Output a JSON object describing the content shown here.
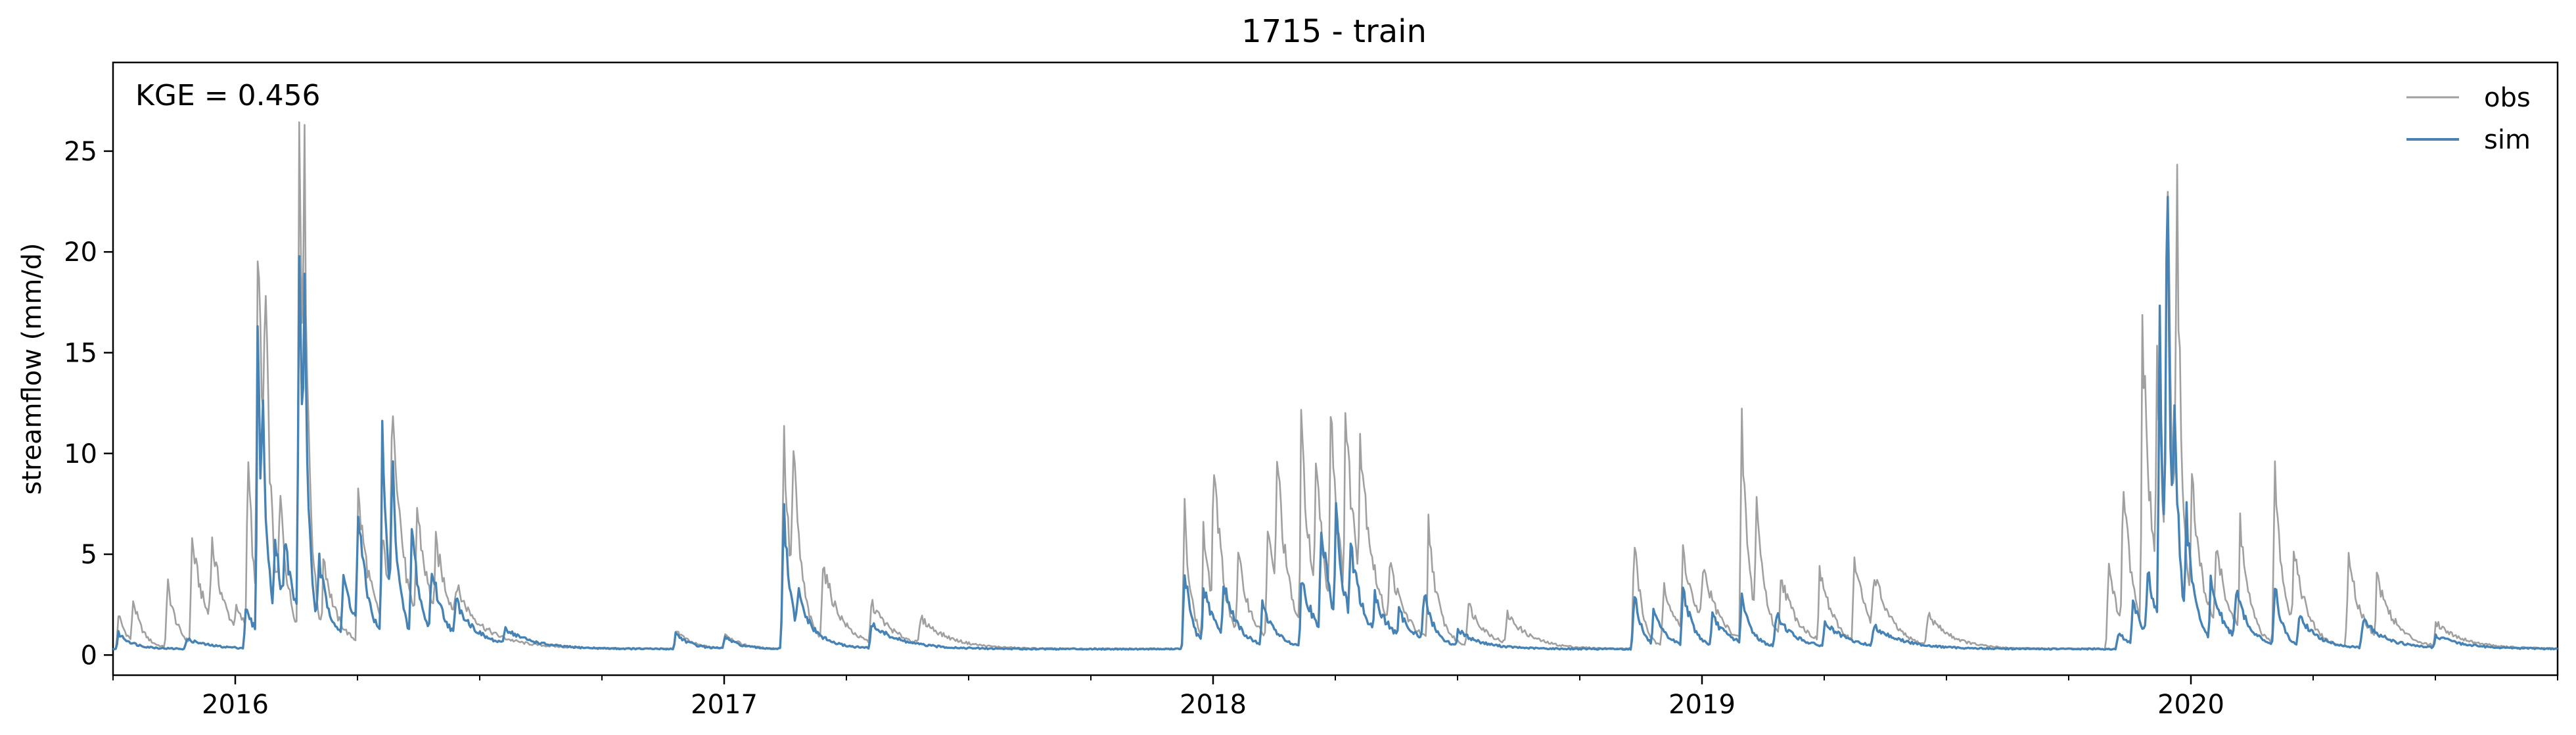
{
  "chart_data": {
    "type": "line",
    "title": "1715 - train",
    "xlabel": "",
    "ylabel": "streamflow (mm/d)",
    "annotation": "KGE = 0.456",
    "x_unit": "fractional year",
    "xlim": [
      2015.75,
      2020.75
    ],
    "ylim": [
      -1.0,
      29.4
    ],
    "yticks": [
      0,
      5,
      10,
      15,
      20,
      25
    ],
    "ytick_labels": [
      "0",
      "5",
      "10",
      "15",
      "20",
      "25"
    ],
    "xticks": [
      2016,
      2017,
      2018,
      2019,
      2020
    ],
    "xtick_labels": [
      "2016",
      "2017",
      "2018",
      "2019",
      "2020"
    ],
    "legend_position": "top-right",
    "series": [
      {
        "name": "obs",
        "color": "#a0a0a0",
        "base": 0.3,
        "events": [
          [
            2015.76,
            1.8,
            0.02
          ],
          [
            2015.79,
            2.2,
            0.02
          ],
          [
            2015.86,
            3.5,
            0.02
          ],
          [
            2015.91,
            5.4,
            0.03
          ],
          [
            2015.95,
            4.3,
            0.03
          ],
          [
            2016.0,
            1.0,
            0.06
          ],
          [
            2016.025,
            11.0,
            0.01
          ],
          [
            2016.045,
            20.4,
            0.015
          ],
          [
            2016.06,
            12.0,
            0.012
          ],
          [
            2016.09,
            6.2,
            0.02
          ],
          [
            2016.13,
            27.8,
            0.012
          ],
          [
            2016.14,
            15.0,
            0.01
          ],
          [
            2016.18,
            4.0,
            0.03
          ],
          [
            2016.25,
            7.5,
            0.03
          ],
          [
            2016.3,
            4.0,
            0.03
          ],
          [
            2016.32,
            11.6,
            0.02
          ],
          [
            2016.37,
            6.0,
            0.03
          ],
          [
            2016.41,
            3.5,
            0.04
          ],
          [
            2016.45,
            1.5,
            0.08
          ],
          [
            2016.9,
            1.0,
            0.03
          ],
          [
            2017.0,
            0.8,
            0.03
          ],
          [
            2017.12,
            12.2,
            0.015
          ],
          [
            2017.14,
            7.6,
            0.02
          ],
          [
            2017.2,
            4.0,
            0.04
          ],
          [
            2017.3,
            2.0,
            0.05
          ],
          [
            2017.4,
            1.3,
            0.06
          ],
          [
            2017.94,
            7.6,
            0.015
          ],
          [
            2017.98,
            5.5,
            0.02
          ],
          [
            2018.0,
            8.2,
            0.02
          ],
          [
            2018.05,
            4.0,
            0.03
          ],
          [
            2018.11,
            5.5,
            0.03
          ],
          [
            2018.13,
            7.0,
            0.02
          ],
          [
            2018.18,
            10.5,
            0.02
          ],
          [
            2018.21,
            7.5,
            0.02
          ],
          [
            2018.24,
            10.6,
            0.02
          ],
          [
            2018.27,
            9.0,
            0.03
          ],
          [
            2018.3,
            7.0,
            0.03
          ],
          [
            2018.36,
            3.0,
            0.04
          ],
          [
            2018.44,
            5.8,
            0.02
          ],
          [
            2018.52,
            2.2,
            0.04
          ],
          [
            2018.6,
            1.5,
            0.05
          ],
          [
            2018.86,
            6.4,
            0.015
          ],
          [
            2018.92,
            3.5,
            0.03
          ],
          [
            2018.96,
            4.2,
            0.03
          ],
          [
            2019.0,
            3.0,
            0.04
          ],
          [
            2019.08,
            11.6,
            0.015
          ],
          [
            2019.11,
            6.2,
            0.02
          ],
          [
            2019.16,
            3.2,
            0.04
          ],
          [
            2019.24,
            3.6,
            0.03
          ],
          [
            2019.31,
            4.2,
            0.03
          ],
          [
            2019.35,
            2.8,
            0.04
          ],
          [
            2019.46,
            1.6,
            0.05
          ],
          [
            2019.83,
            5.0,
            0.02
          ],
          [
            2019.86,
            8.0,
            0.02
          ],
          [
            2019.9,
            15.4,
            0.02
          ],
          [
            2019.93,
            12.0,
            0.015
          ],
          [
            2019.95,
            25.5,
            0.01
          ],
          [
            2019.97,
            21.0,
            0.012
          ],
          [
            2020.0,
            7.0,
            0.03
          ],
          [
            2020.05,
            4.0,
            0.03
          ],
          [
            2020.1,
            5.5,
            0.02
          ],
          [
            2020.17,
            9.0,
            0.02
          ],
          [
            2020.21,
            4.0,
            0.03
          ],
          [
            2020.32,
            4.6,
            0.03
          ],
          [
            2020.38,
            3.0,
            0.04
          ],
          [
            2020.5,
            1.2,
            0.06
          ]
        ]
      },
      {
        "name": "sim",
        "color": "#4682b4",
        "base": 0.3,
        "events": [
          [
            2015.76,
            0.8,
            0.03
          ],
          [
            2015.9,
            0.5,
            0.05
          ],
          [
            2016.02,
            2.0,
            0.03
          ],
          [
            2016.045,
            15.8,
            0.01
          ],
          [
            2016.055,
            7.0,
            0.012
          ],
          [
            2016.08,
            5.0,
            0.02
          ],
          [
            2016.1,
            3.5,
            0.03
          ],
          [
            2016.13,
            21.6,
            0.008
          ],
          [
            2016.14,
            13.0,
            0.01
          ],
          [
            2016.17,
            3.5,
            0.03
          ],
          [
            2016.22,
            3.0,
            0.03
          ],
          [
            2016.25,
            5.8,
            0.02
          ],
          [
            2016.3,
            10.5,
            0.012
          ],
          [
            2016.32,
            8.0,
            0.015
          ],
          [
            2016.36,
            5.8,
            0.02
          ],
          [
            2016.4,
            3.5,
            0.03
          ],
          [
            2016.45,
            1.8,
            0.05
          ],
          [
            2016.55,
            0.8,
            0.06
          ],
          [
            2016.9,
            0.8,
            0.03
          ],
          [
            2017.0,
            0.6,
            0.03
          ],
          [
            2017.12,
            7.8,
            0.015
          ],
          [
            2017.15,
            2.0,
            0.04
          ],
          [
            2017.3,
            1.2,
            0.06
          ],
          [
            2017.94,
            4.5,
            0.015
          ],
          [
            2017.98,
            2.8,
            0.03
          ],
          [
            2018.02,
            2.6,
            0.03
          ],
          [
            2018.1,
            2.0,
            0.03
          ],
          [
            2018.18,
            3.5,
            0.03
          ],
          [
            2018.22,
            5.8,
            0.02
          ],
          [
            2018.25,
            5.4,
            0.02
          ],
          [
            2018.28,
            3.8,
            0.03
          ],
          [
            2018.33,
            1.8,
            0.04
          ],
          [
            2018.38,
            1.2,
            0.04
          ],
          [
            2018.43,
            2.5,
            0.02
          ],
          [
            2018.5,
            0.8,
            0.05
          ],
          [
            2018.86,
            3.3,
            0.015
          ],
          [
            2018.9,
            1.6,
            0.03
          ],
          [
            2018.96,
            3.1,
            0.02
          ],
          [
            2019.02,
            1.5,
            0.04
          ],
          [
            2019.08,
            2.3,
            0.02
          ],
          [
            2019.15,
            1.7,
            0.04
          ],
          [
            2019.25,
            1.2,
            0.05
          ],
          [
            2019.35,
            1.0,
            0.06
          ],
          [
            2019.85,
            0.8,
            0.03
          ],
          [
            2019.88,
            2.0,
            0.03
          ],
          [
            2019.91,
            3.5,
            0.02
          ],
          [
            2019.935,
            18.5,
            0.008
          ],
          [
            2019.95,
            25.8,
            0.008
          ],
          [
            2019.965,
            10.0,
            0.012
          ],
          [
            2019.99,
            5.5,
            0.02
          ],
          [
            2020.04,
            3.0,
            0.03
          ],
          [
            2020.09,
            2.5,
            0.03
          ],
          [
            2020.17,
            3.5,
            0.015
          ],
          [
            2020.22,
            1.6,
            0.04
          ],
          [
            2020.35,
            1.4,
            0.05
          ],
          [
            2020.5,
            0.6,
            0.06
          ]
        ]
      }
    ]
  }
}
